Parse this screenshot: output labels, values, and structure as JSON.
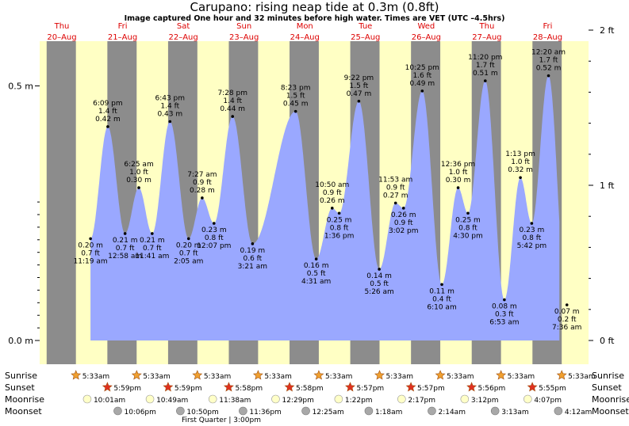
{
  "header": {
    "title": "Carupano: rising  neap tide at 0.3m (0.8ft)",
    "subtitle": "Image captured One hour and 32 minutes before high water. Times are VET (UTC –4.5hrs)"
  },
  "colors": {
    "night": "#8c8c8c",
    "day": "#ffffc4",
    "tide_fill": "#9aa8ff",
    "day_label": "#dd0000",
    "sun_icon": "#f0a030",
    "sunset_icon": "#e03020",
    "moonrise_icon": "#ffffc8",
    "moonset_icon": "#a8a8a8"
  },
  "chart_data": {
    "type": "area",
    "x_unit": "hours since Thu 20-Aug 00:00 (VET)",
    "ylim_m": [
      0,
      0.6
    ],
    "y_ticks_left": [
      "0.0 m",
      "0.5 m"
    ],
    "y_ticks_right": [
      "0 ft",
      "1 ft",
      "2 ft"
    ],
    "days": [
      {
        "dow": "Thu",
        "date": "20–Aug",
        "t": 0
      },
      {
        "dow": "Fri",
        "date": "21–Aug",
        "t": 24
      },
      {
        "dow": "Sat",
        "date": "22–Aug",
        "t": 48
      },
      {
        "dow": "Sun",
        "date": "23–Aug",
        "t": 72
      },
      {
        "dow": "Mon",
        "date": "24–Aug",
        "t": 96
      },
      {
        "dow": "Tue",
        "date": "25–Aug",
        "t": 120
      },
      {
        "dow": "Wed",
        "date": "26–Aug",
        "t": 144
      },
      {
        "dow": "Thu",
        "date": "27–Aug",
        "t": 168
      },
      {
        "dow": "Fri",
        "date": "28–Aug",
        "t": 192
      }
    ],
    "sunrise_h": 5.55,
    "sunset_h": 17.98,
    "start_h": 11.32,
    "end_h": 196.6,
    "extremes": [
      {
        "t": 11.32,
        "m": 0.2,
        "ft": "0.7 ft",
        "m_label": "0.20 m",
        "time": "11:19 am",
        "type": "low"
      },
      {
        "t": 18.15,
        "m": 0.42,
        "ft": "1.4 ft",
        "m_label": "0.42 m",
        "time": "6:09 pm",
        "type": "high"
      },
      {
        "t": 24.97,
        "m": 0.21,
        "ft": "0.7 ft",
        "m_label": "0.21 m",
        "time": "12:58 am",
        "type": "low"
      },
      {
        "t": 30.42,
        "m": 0.3,
        "ft": "1.0 ft",
        "m_label": "0.30 m",
        "time": "6:25 am",
        "type": "high"
      },
      {
        "t": 35.68,
        "m": 0.21,
        "ft": "0.7 ft",
        "m_label": "0.21 m",
        "time": "11:41 am",
        "type": "low"
      },
      {
        "t": 42.72,
        "m": 0.43,
        "ft": "1.4 ft",
        "m_label": "0.43 m",
        "time": "6:43 pm",
        "type": "high"
      },
      {
        "t": 50.08,
        "m": 0.2,
        "ft": "0.7 ft",
        "m_label": "0.20 m",
        "time": "2:05 am",
        "type": "low"
      },
      {
        "t": 55.45,
        "m": 0.28,
        "ft": "0.9 ft",
        "m_label": "0.28 m",
        "time": "7:27 am",
        "type": "high"
      },
      {
        "t": 60.12,
        "m": 0.23,
        "ft": "0.8 ft",
        "m_label": "0.23 m",
        "time": "12:07 pm",
        "type": "low"
      },
      {
        "t": 67.47,
        "m": 0.44,
        "ft": "1.4 ft",
        "m_label": "0.44 m",
        "time": "7:28 pm",
        "type": "high"
      },
      {
        "t": 75.35,
        "m": 0.19,
        "ft": "0.6 ft",
        "m_label": "0.19 m",
        "time": "3:21 am",
        "type": "low"
      },
      {
        "t": 92.38,
        "m": 0.45,
        "ft": "1.5 ft",
        "m_label": "0.45 m",
        "time": "8:23 pm",
        "type": "high"
      },
      {
        "t": 100.52,
        "m": 0.16,
        "ft": "0.5 ft",
        "m_label": "0.16 m",
        "time": "4:31 am",
        "type": "low"
      },
      {
        "t": 106.83,
        "m": 0.26,
        "ft": "0.9 ft",
        "m_label": "0.26 m",
        "time": "10:50 am",
        "type": "high"
      },
      {
        "t": 109.6,
        "m": 0.25,
        "ft": "0.8 ft",
        "m_label": "0.25 m",
        "time": "1:36 pm",
        "type": "low"
      },
      {
        "t": 117.37,
        "m": 0.47,
        "ft": "1.5 ft",
        "m_label": "0.47 m",
        "time": "9:22 pm",
        "type": "high"
      },
      {
        "t": 125.43,
        "m": 0.14,
        "ft": "0.5 ft",
        "m_label": "0.14 m",
        "time": "5:26 am",
        "type": "low"
      },
      {
        "t": 131.88,
        "m": 0.27,
        "ft": "0.9 ft",
        "m_label": "0.27 m",
        "time": "11:53 am",
        "type": "high"
      },
      {
        "t": 135.03,
        "m": 0.26,
        "ft": "0.9 ft",
        "m_label": "0.26 m",
        "time": "3:02 pm",
        "type": "low"
      },
      {
        "t": 142.42,
        "m": 0.49,
        "ft": "1.6 ft",
        "m_label": "0.49 m",
        "time": "10:25 pm",
        "type": "high"
      },
      {
        "t": 150.17,
        "m": 0.11,
        "ft": "0.4 ft",
        "m_label": "0.11 m",
        "time": "6:10 am",
        "type": "low"
      },
      {
        "t": 156.6,
        "m": 0.3,
        "ft": "1.0 ft",
        "m_label": "0.30 m",
        "time": "12:36 pm",
        "type": "high"
      },
      {
        "t": 160.5,
        "m": 0.25,
        "ft": "0.8 ft",
        "m_label": "0.25 m",
        "time": "4:30 pm",
        "type": "low"
      },
      {
        "t": 167.33,
        "m": 0.51,
        "ft": "1.7 ft",
        "m_label": "0.51 m",
        "time": "11:20 pm",
        "type": "high"
      },
      {
        "t": 174.88,
        "m": 0.08,
        "ft": "0.3 ft",
        "m_label": "0.08 m",
        "time": "6:53 am",
        "type": "low"
      },
      {
        "t": 181.22,
        "m": 0.32,
        "ft": "1.0 ft",
        "m_label": "0.32 m",
        "time": "1:13 pm",
        "type": "high"
      },
      {
        "t": 185.7,
        "m": 0.23,
        "ft": "0.8 ft",
        "m_label": "0.23 m",
        "time": "5:42 pm",
        "type": "low"
      },
      {
        "t": 192.33,
        "m": 0.52,
        "ft": "1.7 ft",
        "m_label": "0.52 m",
        "time": "12:20 am",
        "type": "high"
      },
      {
        "t": 199.6,
        "m": 0.07,
        "ft": "0.2 ft",
        "m_label": "0.07 m",
        "time": "7:36 am",
        "type": "low"
      }
    ],
    "astro": {
      "sunrise": [
        {
          "t": 5.55,
          "label": "5:33am"
        },
        {
          "t": 29.55,
          "label": "5:33am"
        },
        {
          "t": 53.55,
          "label": "5:33am"
        },
        {
          "t": 77.55,
          "label": "5:33am"
        },
        {
          "t": 101.55,
          "label": "5:33am"
        },
        {
          "t": 125.55,
          "label": "5:33am"
        },
        {
          "t": 149.55,
          "label": "5:33am"
        },
        {
          "t": 173.55,
          "label": "5:33am"
        },
        {
          "t": 197.55,
          "label": "5:33am"
        }
      ],
      "sunset": [
        {
          "t": 17.98,
          "label": "5:59pm"
        },
        {
          "t": 41.98,
          "label": "5:59pm"
        },
        {
          "t": 65.97,
          "label": "5:58pm"
        },
        {
          "t": 89.97,
          "label": "5:58pm"
        },
        {
          "t": 113.95,
          "label": "5:57pm"
        },
        {
          "t": 137.95,
          "label": "5:57pm"
        },
        {
          "t": 161.93,
          "label": "5:56pm"
        },
        {
          "t": 185.92,
          "label": "5:55pm"
        }
      ],
      "moonrise": [
        {
          "t": 10.02,
          "label": "10:01am"
        },
        {
          "t": 34.82,
          "label": "10:49am"
        },
        {
          "t": 59.63,
          "label": "11:38am"
        },
        {
          "t": 84.48,
          "label": "12:29pm"
        },
        {
          "t": 109.37,
          "label": "1:22pm"
        },
        {
          "t": 134.28,
          "label": "2:17pm"
        },
        {
          "t": 159.2,
          "label": "3:12pm"
        },
        {
          "t": 184.12,
          "label": "4:07pm"
        }
      ],
      "moonset": [
        {
          "t": 22.1,
          "label": "10:06pm"
        },
        {
          "t": 46.83,
          "label": "10:50pm"
        },
        {
          "t": 71.6,
          "label": "11:36pm"
        },
        {
          "t": 96.42,
          "label": "12:25am"
        },
        {
          "t": 121.3,
          "label": "1:18am"
        },
        {
          "t": 146.23,
          "label": "2:14am"
        },
        {
          "t": 171.22,
          "label": "3:13am"
        },
        {
          "t": 196.2,
          "label": "4:12am"
        }
      ]
    },
    "row_labels": [
      "Sunrise",
      "Sunset",
      "Moonrise",
      "Moonset"
    ],
    "first_quarter": {
      "t": 63,
      "label": "First Quarter | 3:00pm"
    }
  }
}
